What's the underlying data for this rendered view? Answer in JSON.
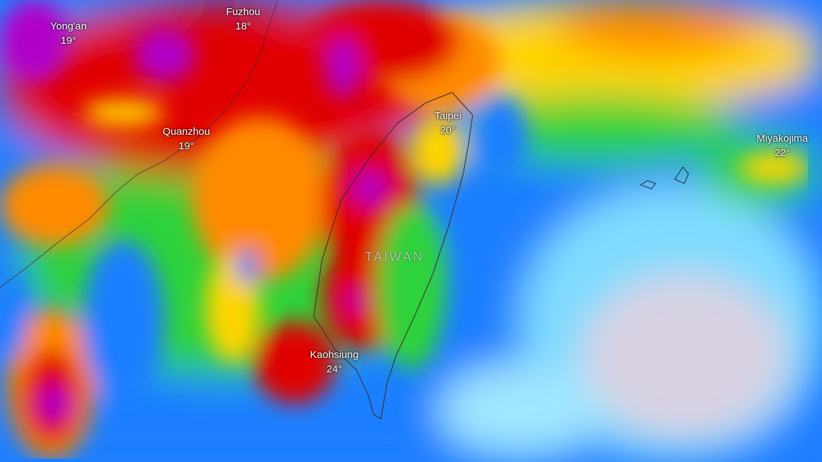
{
  "map": {
    "layer": "precipitation",
    "colors": {
      "purple": "#b000c8",
      "red": "#e00000",
      "orange": "#ff8a00",
      "yellow": "#ffd400",
      "green": "#2fd23a",
      "blue": "#1f7fff",
      "light_blue": "#7fdcff",
      "pale": "#d9d2e2"
    },
    "country_label": "TAIWAN",
    "cities": [
      {
        "name": "Yong'an",
        "temp": "19°"
      },
      {
        "name": "Fuzhou",
        "temp": "18°"
      },
      {
        "name": "Quanzhou",
        "temp": "19°"
      },
      {
        "name": "Taipei",
        "temp": "20°"
      },
      {
        "name": "Miyakojima",
        "temp": "22°"
      },
      {
        "name": "Kaohsiung",
        "temp": "24°"
      }
    ]
  }
}
